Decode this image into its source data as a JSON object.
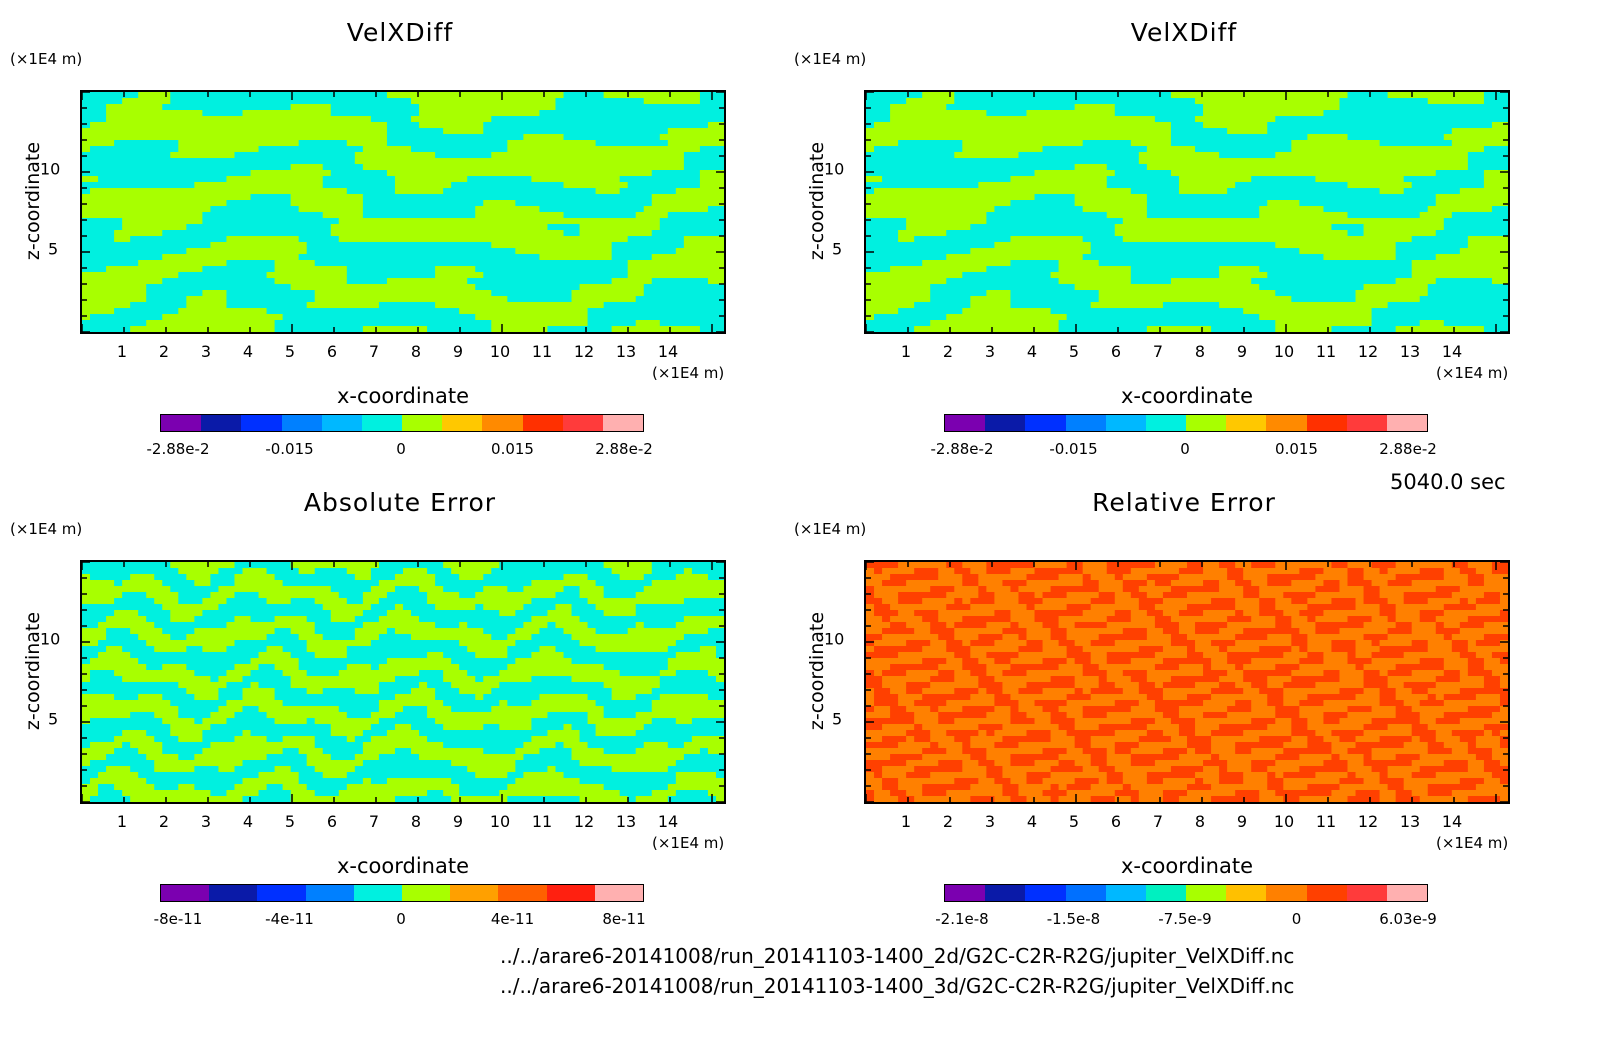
{
  "colors": {
    "velx": [
      "#7b00b0",
      "#0a1aa8",
      "#0030ff",
      "#0080ff",
      "#00b8ff",
      "#00f0e0",
      "#a8ff00",
      "#ffc800",
      "#ff8a00",
      "#ff3000",
      "#ff3b3b",
      "#ffb0b0"
    ],
    "abs": [
      "#7b00b0",
      "#0a1aa8",
      "#0030ff",
      "#0080ff",
      "#00f0e0",
      "#a8ff00",
      "#ffa000",
      "#ff6000",
      "#ff2010",
      "#ffb0b0"
    ],
    "rel": [
      "#7b00b0",
      "#0a1aa8",
      "#0030ff",
      "#0070ff",
      "#00b8ff",
      "#00f0c0",
      "#a8ff00",
      "#ffc000",
      "#ff8000",
      "#ff4000",
      "#ff3b3b",
      "#ffb0b0"
    ]
  },
  "charts": [
    {
      "title": "VelXDiff",
      "yunit": "(×1E4 m)",
      "ylabel": "z-coordinate",
      "yticks": [
        "5",
        "10"
      ],
      "xticks": [
        "1",
        "2",
        "3",
        "4",
        "5",
        "6",
        "7",
        "8",
        "9",
        "10",
        "11",
        "12",
        "13",
        "14"
      ],
      "xunit": "(×1E4 m)",
      "xlabel": "x-coordinate",
      "colorbar_labels": [
        "-2.88e-2",
        "-0.015",
        "0",
        "0.015",
        "2.88e-2"
      ]
    },
    {
      "title": "VelXDiff",
      "yunit": "(×1E4 m)",
      "ylabel": "z-coordinate",
      "yticks": [
        "5",
        "10"
      ],
      "xticks": [
        "1",
        "2",
        "3",
        "4",
        "5",
        "6",
        "7",
        "8",
        "9",
        "10",
        "11",
        "12",
        "13",
        "14"
      ],
      "xunit": "(×1E4 m)",
      "xlabel": "x-coordinate",
      "colorbar_labels": [
        "-2.88e-2",
        "-0.015",
        "0",
        "0.015",
        "2.88e-2"
      ]
    },
    {
      "title": "Absolute Error",
      "yunit": "(×1E4 m)",
      "ylabel": "z-coordinate",
      "yticks": [
        "5",
        "10"
      ],
      "xticks": [
        "1",
        "2",
        "3",
        "4",
        "5",
        "6",
        "7",
        "8",
        "9",
        "10",
        "11",
        "12",
        "13",
        "14"
      ],
      "xunit": "(×1E4 m)",
      "xlabel": "x-coordinate",
      "colorbar_labels": [
        "-8e-11",
        "-4e-11",
        "0",
        "4e-11",
        "8e-11"
      ]
    },
    {
      "title": "Relative Error",
      "yunit": "(×1E4 m)",
      "ylabel": "z-coordinate",
      "yticks": [
        "5",
        "10"
      ],
      "xticks": [
        "1",
        "2",
        "3",
        "4",
        "5",
        "6",
        "7",
        "8",
        "9",
        "10",
        "11",
        "12",
        "13",
        "14"
      ],
      "xunit": "(×1E4 m)",
      "xlabel": "x-coordinate",
      "colorbar_labels": [
        "-2.1e-8",
        "-1.5e-8",
        "-7.5e-9",
        "0",
        "6.03e-9"
      ]
    }
  ],
  "time_label": "5040.0 sec",
  "file_paths": [
    "../../arare6-20141008/run_20141103-1400_2d/G2C-C2R-R2G/jupiter_VelXDiff.nc",
    "../../arare6-20141008/run_20141103-1400_3d/G2C-C2R-R2G/jupiter_VelXDiff.nc"
  ],
  "chart_data": [
    {
      "type": "heatmap",
      "title": "VelXDiff",
      "xlabel": "x-coordinate",
      "ylabel": "z-coordinate",
      "xlim": [
        0,
        15
      ],
      "ylim": [
        0,
        15
      ],
      "levels": [
        -0.0288,
        -0.015,
        0,
        0.015,
        0.0288
      ],
      "units": "(×1E4 m)"
    },
    {
      "type": "heatmap",
      "title": "VelXDiff",
      "xlabel": "x-coordinate",
      "ylabel": "z-coordinate",
      "xlim": [
        0,
        15
      ],
      "ylim": [
        0,
        15
      ],
      "levels": [
        -0.0288,
        -0.015,
        0,
        0.015,
        0.0288
      ],
      "units": "(×1E4 m)"
    },
    {
      "type": "heatmap",
      "title": "Absolute Error",
      "xlabel": "x-coordinate",
      "ylabel": "z-coordinate",
      "xlim": [
        0,
        15
      ],
      "ylim": [
        0,
        15
      ],
      "levels": [
        -8e-11,
        -4e-11,
        0,
        4e-11,
        8e-11
      ],
      "units": "(×1E4 m)"
    },
    {
      "type": "heatmap",
      "title": "Relative Error",
      "xlabel": "x-coordinate",
      "ylabel": "z-coordinate",
      "xlim": [
        0,
        15
      ],
      "ylim": [
        0,
        15
      ],
      "levels": [
        -2.1e-08,
        -1.5e-08,
        -7.5e-09,
        0,
        6.03e-09
      ],
      "units": "(×1E4 m)"
    }
  ]
}
